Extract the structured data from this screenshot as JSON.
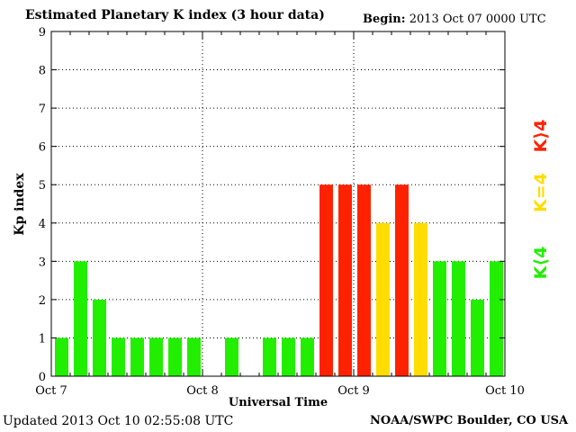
{
  "header": {
    "title": "Estimated Planetary K index (3 hour data)",
    "begin_label": "Begin:",
    "begin_value": "2013 Oct 07 0000 UTC"
  },
  "footer": {
    "updated": "Updated 2013 Oct 10 02:55:08 UTC",
    "credit": "NOAA/SWPC Boulder, CO USA"
  },
  "legend": {
    "high": "K⟩4",
    "equal": "K=4",
    "low": "K⟨4"
  },
  "colors": {
    "low": "#22ee00",
    "equal": "#ffdd00",
    "high": "#ff2200"
  },
  "chart_data": {
    "type": "bar",
    "title": "Estimated Planetary K index (3 hour data)",
    "xlabel": "Universal Time",
    "ylabel": "Kp index",
    "ylim": [
      0,
      9
    ],
    "yticks": [
      "0",
      "1",
      "2",
      "3",
      "4",
      "5",
      "6",
      "7",
      "8",
      "9"
    ],
    "xticks": [
      "Oct 7",
      "Oct 8",
      "Oct 9",
      "Oct 10"
    ],
    "grid": true,
    "bar_interval": "3 hour",
    "values": [
      1,
      3,
      2,
      1,
      1,
      1,
      1,
      1,
      0,
      1,
      0,
      1,
      1,
      1,
      5,
      5,
      5,
      4,
      5,
      4,
      3,
      3,
      2,
      3
    ]
  }
}
